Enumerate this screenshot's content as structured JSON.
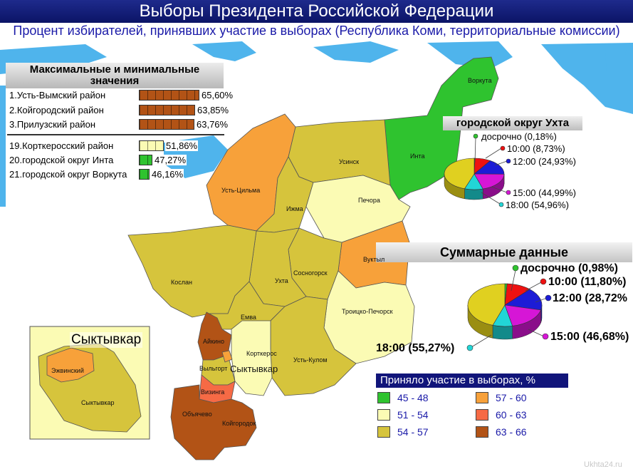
{
  "title": "Выборы Президента Российской Федерации",
  "subtitle": "Процент избирателей, принявших участие в выборах (Республика Коми, территориальные комиссии)",
  "colors": {
    "water": "#4fb4ec",
    "band_45_48": "#2fc32f",
    "band_51_54": "#fbfbb4",
    "band_54_57": "#d6c43c",
    "band_57_60": "#f7a13a",
    "band_60_63": "#f66a45",
    "band_63_66": "#b25316"
  },
  "maxmin": {
    "title": "Максимальные и минимальные значения",
    "rows": [
      {
        "label": "1.Усть-Вымский район",
        "value": "65,60%",
        "pct": 65.6,
        "color": "#b25316"
      },
      {
        "label": "2.Койгородский район",
        "value": "63,85%",
        "pct": 63.85,
        "color": "#b25316"
      },
      {
        "label": "3.Прилузский район",
        "value": "63,76%",
        "pct": 63.76,
        "color": "#b25316"
      },
      {
        "label": "19.Корткеросский район",
        "value": "51,86%",
        "pct": 51.86,
        "color": "#fbfbb4"
      },
      {
        "label": "20.городской округ Инта",
        "value": "47,27%",
        "pct": 47.27,
        "color": "#2fc32f"
      },
      {
        "label": "21.городской округ Воркута",
        "value": "46,16%",
        "pct": 46.16,
        "color": "#2fc32f"
      }
    ]
  },
  "ukhta": {
    "title": "городской округ Ухта",
    "labels": [
      "досрочно (0,18%)",
      "10:00 (8,73%)",
      "12:00 (24,93%)",
      "15:00 (44,99%)",
      "18:00 (54,96%)"
    ]
  },
  "summary": {
    "title": "Суммарные данные",
    "labels": [
      "досрочно (0,98%)",
      "10:00 (11,80%)",
      "12:00 (28,72%",
      "15:00 (46,68%)",
      "18:00 (55,27%)"
    ]
  },
  "legend": {
    "title": "Приняло участие в выборах, %",
    "items": [
      {
        "label": "45 - 48",
        "color": "#2fc32f"
      },
      {
        "label": "57 - 60",
        "color": "#f7a13a"
      },
      {
        "label": "51 - 54",
        "color": "#fbfbb4"
      },
      {
        "label": "60 - 63",
        "color": "#f66a45"
      },
      {
        "label": "54 - 57",
        "color": "#d6c43c"
      },
      {
        "label": "63 - 66",
        "color": "#b25316"
      }
    ]
  },
  "regions": {
    "vorkuta": "Воркута",
    "inta": "Инта",
    "usinsk": "Усинск",
    "ust_tsilma": "Усть-Цильма",
    "izhma": "Ижма",
    "pechora": "Печора",
    "vuktyl": "Вуктыл",
    "sosnogorsk": "Сосногорск",
    "ukhta": "Ухта",
    "koslan": "Кослан",
    "troitsko": "Троицко-Печорск",
    "emva": "Емва",
    "aikino": "Айкино",
    "kortkeros": "Корткерос",
    "ust_kulom": "Усть-Кулом",
    "vylgort": "Выльгорт",
    "syktyvkar": "Сыктывкар",
    "vizinga": "Визинга",
    "obyachevo": "Объячево",
    "koygorodok": "Койгородок"
  },
  "inset": {
    "title": "Сыктывкар",
    "ezhvinsky": "Эжвинский",
    "syktyvkar": "Сыктывкар"
  },
  "watermark": "Ukhta24.ru"
}
